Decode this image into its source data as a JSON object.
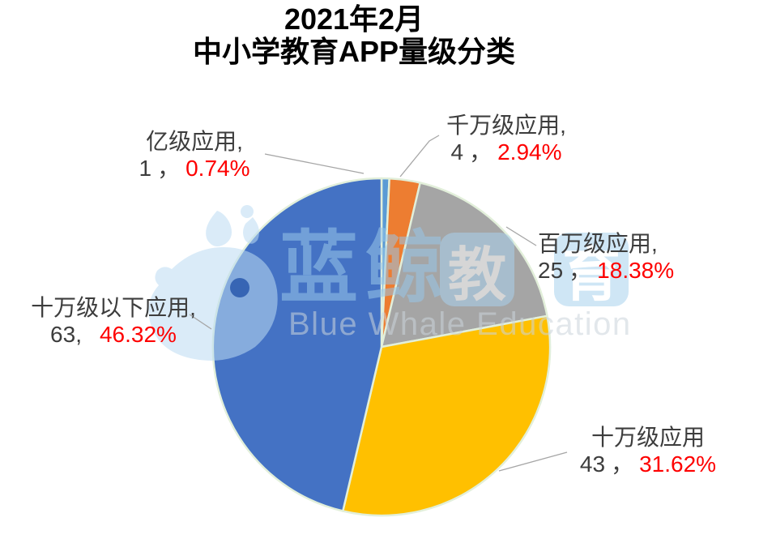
{
  "title": {
    "line1": "2021年2月",
    "line2": "中小学教育APP量级分类"
  },
  "chart_data": {
    "type": "pie",
    "title": "2021年2月 中小学教育APP量级分类",
    "categories": [
      "亿级应用",
      "千万级应用",
      "百万级应用",
      "十万级应用",
      "十万级以下应用"
    ],
    "values": [
      1,
      4,
      25,
      43,
      63
    ],
    "percentages": [
      0.74,
      2.94,
      18.38,
      31.62,
      46.32
    ],
    "colors": [
      "#5b9bd5",
      "#ed7d31",
      "#a5a5a5",
      "#ffc000",
      "#4472c4"
    ],
    "slice_keys": [
      "yiji",
      "qianwanji",
      "baiwanji",
      "shiwanji",
      "shiwanji-below"
    ],
    "slice_border_color": "#e2efda",
    "start_angle_deg": 0,
    "direction": "clockwise",
    "legend": "none",
    "data_labels": "category, value, percentage (percentage shown in red) with gray leader lines"
  },
  "labels": [
    {
      "name": "亿级应用,",
      "count": "1",
      "sep": "，",
      "pct": "0.74%"
    },
    {
      "name": "千万级应用,",
      "count": "4",
      "sep": "，",
      "pct": "2.94%"
    },
    {
      "name": "百万级应用,",
      "count": "25",
      "sep": "，",
      "pct": "18.38%"
    },
    {
      "name": "十万级应用",
      "count": "43",
      "sep": "，",
      "pct": "31.62%"
    },
    {
      "name": "十万级以下应用,",
      "count": "63,",
      "sep": "",
      "pct": "46.32%"
    }
  ],
  "label_colors": {
    "text": "#3d3d3d",
    "percent": "#fe0000",
    "leader_line": "#a6a6a6"
  },
  "watermark": {
    "brand_cn": "蓝鲸",
    "badge_1": "教",
    "badge_2": "育",
    "brand_en": "Blue Whale Education",
    "whale_color": "#bcdcf3",
    "eye_color": "#2d5ca8"
  }
}
